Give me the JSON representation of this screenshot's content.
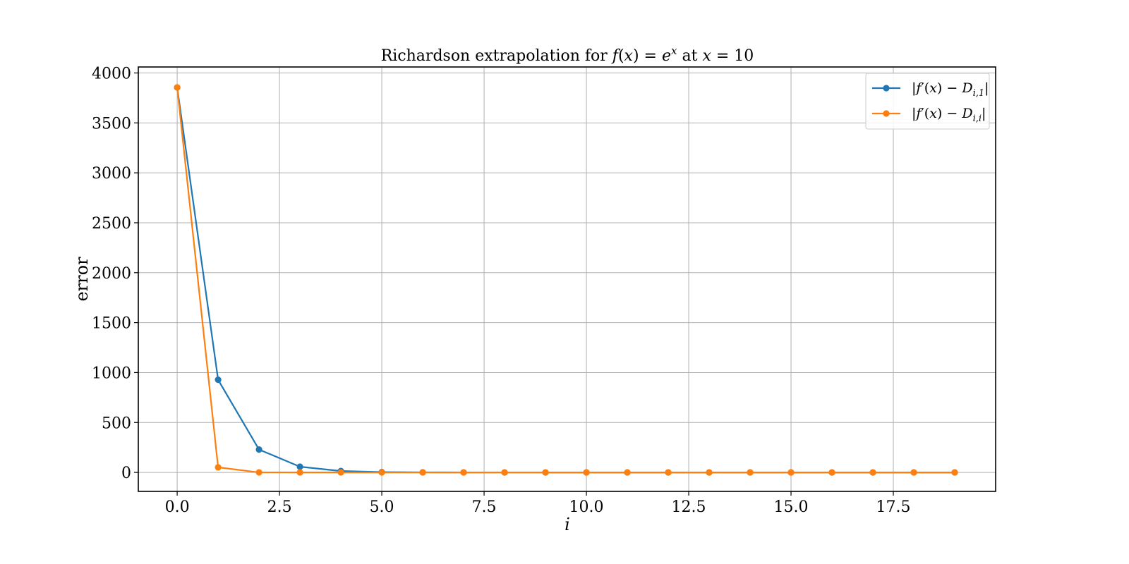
{
  "chart_data": {
    "type": "line",
    "title": "Richardson extrapolation for f(x) = e^x at x = 10",
    "xlabel": "i",
    "ylabel": "error",
    "xlim": [
      -0.95,
      20.0
    ],
    "ylim": [
      -190,
      4060
    ],
    "grid": true,
    "legend_position": "top-right",
    "x_ticks": [
      "0.0",
      "2.5",
      "5.0",
      "7.5",
      "10.0",
      "12.5",
      "15.0",
      "17.5"
    ],
    "y_ticks": [
      "0",
      "500",
      "1000",
      "1500",
      "2000",
      "2500",
      "3000",
      "3500",
      "4000"
    ],
    "x": [
      0,
      1,
      2,
      3,
      4,
      5,
      6,
      7,
      8,
      9,
      10,
      11,
      12,
      13,
      14,
      15,
      16,
      17,
      18,
      19
    ],
    "series": [
      {
        "name": "|f′(x) − D_{i,1}|",
        "color": "#1f77b4",
        "values": [
          3855,
          928,
          229,
          57,
          14,
          3.6,
          0.9,
          0.2,
          0.1,
          0,
          0,
          0,
          0,
          0,
          0,
          0,
          0,
          0,
          0,
          0
        ]
      },
      {
        "name": "|f′(x) − D_{i,i}|",
        "color": "#ff7f0e",
        "values": [
          3855,
          51,
          0.3,
          0,
          0,
          0,
          0,
          0,
          0,
          0,
          0,
          0,
          0,
          0,
          0,
          0,
          0,
          0,
          0,
          0
        ]
      }
    ]
  }
}
